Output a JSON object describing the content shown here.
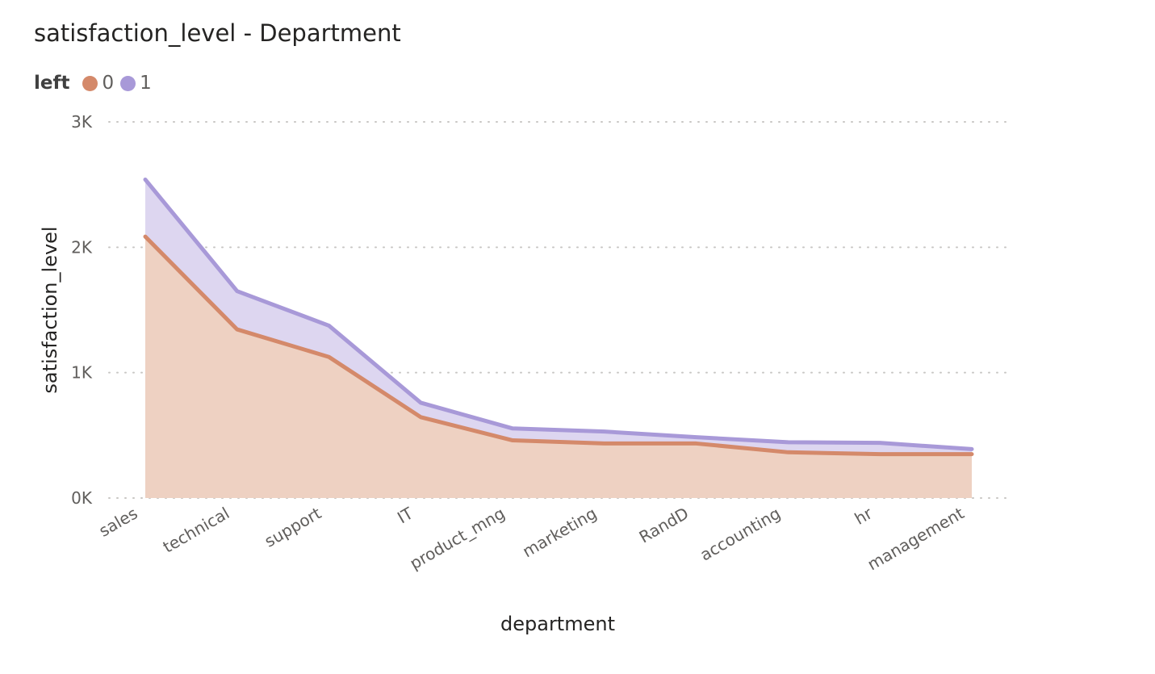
{
  "chart_data": {
    "type": "area",
    "title": "satisfaction_level - Department",
    "xlabel": "department",
    "ylabel": "satisfaction_level",
    "categories": [
      "sales",
      "technical",
      "support",
      "IT",
      "product_mng",
      "marketing",
      "RandD",
      "accounting",
      "hr",
      "management"
    ],
    "stacked": true,
    "ylim": [
      0,
      3000
    ],
    "yticks": [
      0,
      1000,
      2000,
      3000
    ],
    "ytick_labels": [
      "0K",
      "1K",
      "2K",
      "3K"
    ],
    "grid": true,
    "legend": {
      "title": "left",
      "placement": "top-left"
    },
    "series": [
      {
        "name": "0",
        "color": "#d4896a",
        "fill": "#eed1c2",
        "values": [
          2085,
          1345,
          1125,
          645,
          460,
          435,
          435,
          365,
          350,
          350
        ]
      },
      {
        "name": "1",
        "color": "#a899d8",
        "fill": "#ddd6f0",
        "values": [
          455,
          305,
          250,
          115,
          95,
          95,
          50,
          80,
          90,
          40
        ]
      }
    ]
  }
}
